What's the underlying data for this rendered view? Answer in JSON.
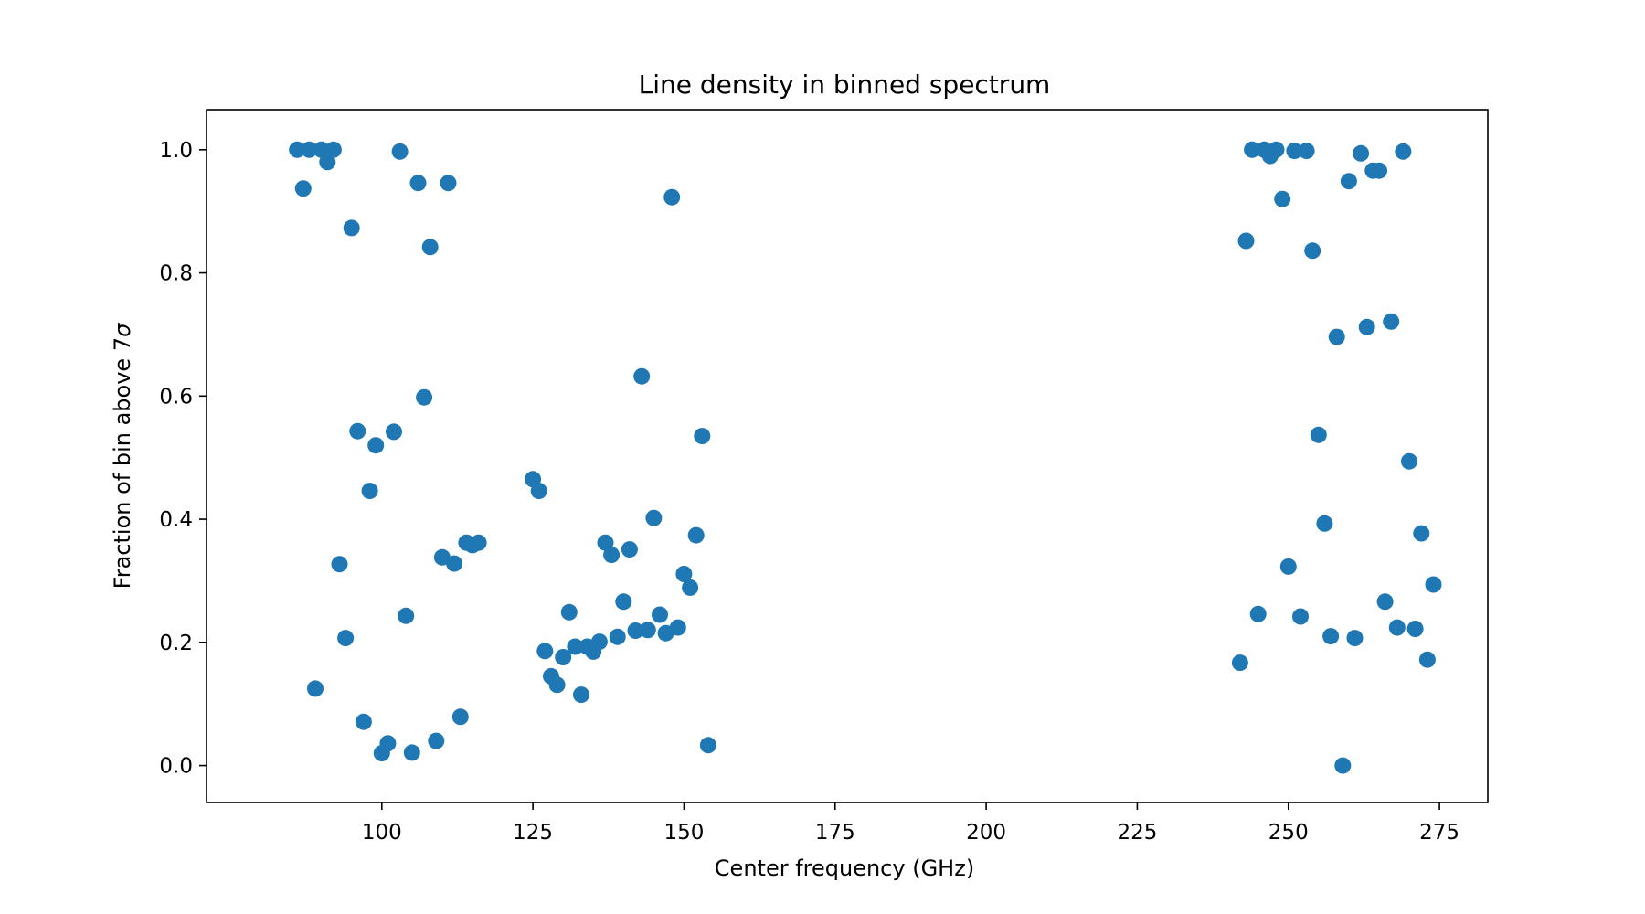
{
  "chart_data": {
    "type": "scatter",
    "title": "Line density in binned spectrum",
    "xlabel": "Center frequency (GHz)",
    "ylabel_prefix": "Fraction of bin above 7",
    "ylabel_symbol": "σ",
    "xlim": [
      71,
      283
    ],
    "ylim": [
      -0.06,
      1.065
    ],
    "xticks": [
      100,
      125,
      150,
      175,
      200,
      225,
      250,
      275
    ],
    "xtick_labels": [
      "100",
      "125",
      "150",
      "175",
      "200",
      "225",
      "250",
      "275"
    ],
    "yticks": [
      0.0,
      0.2,
      0.4,
      0.6,
      0.8,
      1.0
    ],
    "ytick_labels": [
      "0.0",
      "0.2",
      "0.4",
      "0.6",
      "0.8",
      "1.0"
    ],
    "grid": false,
    "marker_color": "#1f77b4",
    "x": [
      86,
      87,
      88,
      89,
      90,
      91,
      92,
      93,
      94,
      95,
      96,
      97,
      98,
      99,
      100,
      101,
      102,
      103,
      104,
      105,
      106,
      107,
      108,
      109,
      110,
      111,
      112,
      113,
      114,
      115,
      116,
      125,
      126,
      127,
      128,
      129,
      130,
      131,
      132,
      133,
      134,
      135,
      136,
      137,
      138,
      139,
      140,
      141,
      142,
      143,
      144,
      145,
      146,
      147,
      148,
      149,
      150,
      151,
      152,
      153,
      154,
      242,
      243,
      244,
      245,
      246,
      247,
      248,
      249,
      250,
      251,
      252,
      253,
      254,
      255,
      256,
      257,
      258,
      259,
      260,
      261,
      262,
      263,
      264,
      265,
      266,
      267,
      268,
      269,
      270,
      271,
      272,
      273,
      274
    ],
    "y": [
      1.0,
      0.937,
      1.0,
      0.125,
      1.0,
      0.98,
      1.0,
      0.327,
      0.207,
      0.873,
      0.543,
      0.071,
      0.446,
      0.52,
      0.02,
      0.036,
      0.542,
      0.997,
      0.243,
      0.021,
      0.946,
      0.598,
      0.842,
      0.04,
      0.338,
      0.946,
      0.328,
      0.079,
      0.362,
      0.358,
      0.362,
      0.465,
      0.446,
      0.186,
      0.145,
      0.131,
      0.176,
      0.249,
      0.193,
      0.115,
      0.193,
      0.185,
      0.201,
      0.362,
      0.342,
      0.209,
      0.266,
      0.351,
      0.219,
      0.632,
      0.22,
      0.402,
      0.245,
      0.215,
      0.923,
      0.224,
      0.311,
      0.289,
      0.374,
      0.535,
      0.033,
      0.167,
      0.852,
      1.0,
      0.246,
      1.0,
      0.99,
      1.0,
      0.92,
      0.323,
      0.998,
      0.242,
      0.998,
      0.836,
      0.537,
      0.393,
      0.21,
      0.696,
      0.0,
      0.949,
      0.207,
      0.994,
      0.712,
      0.966,
      0.966,
      0.266,
      0.721,
      0.224,
      0.997,
      0.494,
      0.222,
      0.377,
      0.172,
      0.294
    ]
  }
}
